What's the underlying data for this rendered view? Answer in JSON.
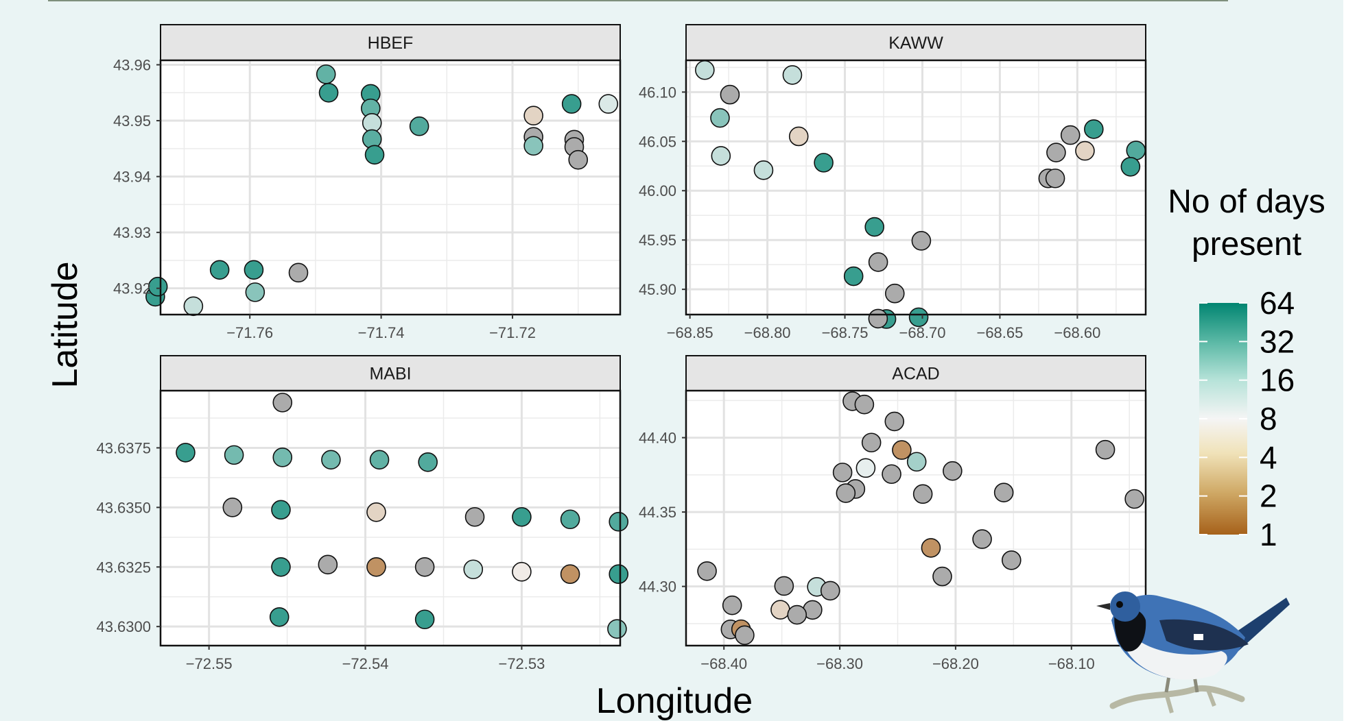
{
  "figure": {
    "xlabel": "Longitude",
    "ylabel": "Latitude",
    "legend_title_line1": "No of days",
    "legend_title_line2": "present",
    "legend_labels": [
      "64",
      "32",
      "16",
      "8",
      "4",
      "2",
      "1"
    ]
  },
  "colors": {
    "grey_na": "#ababab",
    "scale_low": "#a6611a",
    "scale_mid": "#f5f5f5",
    "scale_high": "#018571",
    "strip_bg": "#e5e5e5"
  },
  "icons": [
    "bird-illustration"
  ],
  "chart_data": [
    {
      "type": "scatter",
      "title": "HBEF",
      "xlim": [
        -71.7736,
        -71.7036
      ],
      "ylim": [
        43.9153,
        43.9608
      ],
      "xticks": [
        -71.76,
        -71.74,
        -71.72
      ],
      "xtick_labels": [
        "−71.76",
        "−71.74",
        "−71.72"
      ],
      "yticks": [
        43.92,
        43.93,
        43.94,
        43.95,
        43.96
      ],
      "ytick_labels": [
        "43.92",
        "43.93",
        "43.94",
        "43.95",
        "43.96"
      ],
      "points": [
        {
          "x": -71.7744,
          "y": 43.9185,
          "days": 40
        },
        {
          "x": -71.774,
          "y": 43.9203,
          "days": 40
        },
        {
          "x": -71.7686,
          "y": 43.9168,
          "days": 12
        },
        {
          "x": -71.7646,
          "y": 43.9233,
          "days": 40
        },
        {
          "x": -71.7594,
          "y": 43.9233,
          "days": 40
        },
        {
          "x": -71.7592,
          "y": 43.9193,
          "days": 20
        },
        {
          "x": -71.7526,
          "y": 43.9228,
          "days": null
        },
        {
          "x": -71.7484,
          "y": 43.9583,
          "days": 28
        },
        {
          "x": -71.748,
          "y": 43.955,
          "days": 40
        },
        {
          "x": -71.7416,
          "y": 43.9548,
          "days": 40
        },
        {
          "x": -71.7416,
          "y": 43.9522,
          "days": 28
        },
        {
          "x": -71.7414,
          "y": 43.9496,
          "days": 12
        },
        {
          "x": -71.7414,
          "y": 43.9467,
          "days": 30
        },
        {
          "x": -71.741,
          "y": 43.9439,
          "days": 40
        },
        {
          "x": -71.7342,
          "y": 43.949,
          "days": 32
        },
        {
          "x": -71.7168,
          "y": 43.9509,
          "days": 5
        },
        {
          "x": -71.7168,
          "y": 43.9471,
          "days": null
        },
        {
          "x": -71.7168,
          "y": 43.9455,
          "days": 20
        },
        {
          "x": -71.711,
          "y": 43.953,
          "days": 40
        },
        {
          "x": -71.7106,
          "y": 43.9466,
          "days": null
        },
        {
          "x": -71.7106,
          "y": 43.9453,
          "days": null
        },
        {
          "x": -71.71,
          "y": 43.943,
          "days": null
        },
        {
          "x": -71.7054,
          "y": 43.953,
          "days": 10
        }
      ]
    },
    {
      "type": "scatter",
      "title": "KAWW",
      "xlim": [
        -68.8525,
        -68.5559
      ],
      "ylim": [
        45.8744,
        46.1322
      ],
      "xticks": [
        -68.85,
        -68.8,
        -68.75,
        -68.7,
        -68.65,
        -68.6
      ],
      "xtick_labels": [
        "−68.85",
        "−68.80",
        "−68.75",
        "−68.70",
        "−68.65",
        "−68.60"
      ],
      "yticks": [
        45.9,
        45.95,
        46.0,
        46.05,
        46.1
      ],
      "ytick_labels": [
        "45.90",
        "45.95",
        "46.00",
        "46.05",
        "46.10"
      ],
      "points": [
        {
          "x": -68.8404,
          "y": 46.1223,
          "days": 12
        },
        {
          "x": -68.8242,
          "y": 46.0974,
          "days": null
        },
        {
          "x": -68.8306,
          "y": 46.0738,
          "days": 20
        },
        {
          "x": -68.83,
          "y": 46.0353,
          "days": 12
        },
        {
          "x": -68.8025,
          "y": 46.0208,
          "days": 12
        },
        {
          "x": -68.7839,
          "y": 46.1173,
          "days": 12
        },
        {
          "x": -68.7798,
          "y": 46.0551,
          "days": 5
        },
        {
          "x": -68.7637,
          "y": 46.0284,
          "days": 40
        },
        {
          "x": -68.7309,
          "y": 45.9633,
          "days": 40
        },
        {
          "x": -68.7444,
          "y": 45.9133,
          "days": 40
        },
        {
          "x": -68.7285,
          "y": 45.9276,
          "days": null
        },
        {
          "x": -68.7178,
          "y": 45.8958,
          "days": null
        },
        {
          "x": -68.7007,
          "y": 45.9492,
          "days": null
        },
        {
          "x": -68.7232,
          "y": 45.8699,
          "days": 40
        },
        {
          "x": -68.7286,
          "y": 45.8703,
          "days": null
        },
        {
          "x": -68.7024,
          "y": 45.8717,
          "days": 40
        },
        {
          "x": -68.6045,
          "y": 46.0564,
          "days": null
        },
        {
          "x": -68.6137,
          "y": 46.0387,
          "days": null
        },
        {
          "x": -68.6188,
          "y": 46.0125,
          "days": null
        },
        {
          "x": -68.6143,
          "y": 46.0125,
          "days": null
        },
        {
          "x": -68.5951,
          "y": 46.0404,
          "days": 5
        },
        {
          "x": -68.5894,
          "y": 46.0624,
          "days": 40
        },
        {
          "x": -68.5622,
          "y": 46.0408,
          "days": 32
        },
        {
          "x": -68.5657,
          "y": 46.0243,
          "days": 40
        }
      ]
    },
    {
      "type": "scatter",
      "title": "MABI",
      "xlim": [
        -72.5531,
        -72.5237
      ],
      "ylim": [
        43.6292,
        43.6399
      ],
      "xticks": [
        -72.55,
        -72.54,
        -72.53
      ],
      "xtick_labels": [
        "−72.55",
        "−72.54",
        "−72.53"
      ],
      "yticks": [
        43.63,
        43.6325,
        43.635,
        43.6375
      ],
      "ytick_labels": [
        "43.6300",
        "43.6325",
        "43.6350",
        "43.6375"
      ],
      "points": [
        {
          "x": -72.5453,
          "y": 43.6394,
          "days": null
        },
        {
          "x": -72.5515,
          "y": 43.6373,
          "days": 40
        },
        {
          "x": -72.5484,
          "y": 43.6372,
          "days": 24
        },
        {
          "x": -72.5453,
          "y": 43.6371,
          "days": 24
        },
        {
          "x": -72.5422,
          "y": 43.637,
          "days": 24
        },
        {
          "x": -72.5391,
          "y": 43.637,
          "days": 28
        },
        {
          "x": -72.536,
          "y": 43.6369,
          "days": 32
        },
        {
          "x": -72.5485,
          "y": 43.635,
          "days": null
        },
        {
          "x": -72.5454,
          "y": 43.6349,
          "days": 40
        },
        {
          "x": -72.5393,
          "y": 43.6348,
          "days": 5
        },
        {
          "x": -72.533,
          "y": 43.6346,
          "days": null
        },
        {
          "x": -72.53,
          "y": 43.6346,
          "days": 40
        },
        {
          "x": -72.5269,
          "y": 43.6345,
          "days": 32
        },
        {
          "x": -72.5238,
          "y": 43.6344,
          "days": 32
        },
        {
          "x": -72.5454,
          "y": 43.6325,
          "days": 40
        },
        {
          "x": -72.5424,
          "y": 43.6326,
          "days": null
        },
        {
          "x": -72.5393,
          "y": 43.6325,
          "days": 2
        },
        {
          "x": -72.5362,
          "y": 43.6325,
          "days": null
        },
        {
          "x": -72.5331,
          "y": 43.6324,
          "days": 12
        },
        {
          "x": -72.53,
          "y": 43.6323,
          "days": 7
        },
        {
          "x": -72.5269,
          "y": 43.6322,
          "days": 2
        },
        {
          "x": -72.5238,
          "y": 43.6322,
          "days": 40
        },
        {
          "x": -72.5455,
          "y": 43.6304,
          "days": 40
        },
        {
          "x": -72.5362,
          "y": 43.6303,
          "days": 40
        },
        {
          "x": -72.5239,
          "y": 43.6299,
          "days": 20
        }
      ]
    },
    {
      "type": "scatter",
      "title": "ACAD",
      "xlim": [
        -68.4327,
        -68.0359
      ],
      "ylim": [
        44.2602,
        44.4316
      ],
      "xticks": [
        -68.4,
        -68.3,
        -68.2,
        -68.1
      ],
      "xtick_labels": [
        "−68.40",
        "−68.30",
        "−68.20",
        "−68.10"
      ],
      "yticks": [
        44.3,
        44.35,
        44.4
      ],
      "ytick_labels": [
        "44.30",
        "44.35",
        "44.40"
      ],
      "points": [
        {
          "x": -68.2891,
          "y": 44.4245,
          "days": null
        },
        {
          "x": -68.2788,
          "y": 44.4223,
          "days": null
        },
        {
          "x": -68.2528,
          "y": 44.4109,
          "days": null
        },
        {
          "x": -68.2727,
          "y": 44.3967,
          "days": null
        },
        {
          "x": -68.2465,
          "y": 44.3917,
          "days": 2
        },
        {
          "x": -68.2336,
          "y": 44.3838,
          "days": 16
        },
        {
          "x": -68.2776,
          "y": 44.3796,
          "days": 9
        },
        {
          "x": -68.2976,
          "y": 44.3766,
          "days": null
        },
        {
          "x": -68.2553,
          "y": 44.3755,
          "days": null
        },
        {
          "x": -68.2027,
          "y": 44.3776,
          "days": null
        },
        {
          "x": -68.2865,
          "y": 44.3655,
          "days": null
        },
        {
          "x": -68.2948,
          "y": 44.3627,
          "days": null
        },
        {
          "x": -68.2283,
          "y": 44.3621,
          "days": null
        },
        {
          "x": -68.1584,
          "y": 44.3631,
          "days": null
        },
        {
          "x": -68.0708,
          "y": 44.3919,
          "days": null
        },
        {
          "x": -68.0456,
          "y": 44.3588,
          "days": null
        },
        {
          "x": -68.1771,
          "y": 44.3318,
          "days": null
        },
        {
          "x": -68.2213,
          "y": 44.3259,
          "days": 2
        },
        {
          "x": -68.1518,
          "y": 44.3176,
          "days": null
        },
        {
          "x": -68.2115,
          "y": 44.3067,
          "days": null
        },
        {
          "x": -68.4146,
          "y": 44.3103,
          "days": null
        },
        {
          "x": -68.3481,
          "y": 44.3003,
          "days": null
        },
        {
          "x": -68.3198,
          "y": 44.2997,
          "days": 12
        },
        {
          "x": -68.3082,
          "y": 44.2971,
          "days": null
        },
        {
          "x": -68.3929,
          "y": 44.2873,
          "days": null
        },
        {
          "x": -68.3513,
          "y": 44.2843,
          "days": 5
        },
        {
          "x": -68.3235,
          "y": 44.2842,
          "days": null
        },
        {
          "x": -68.3369,
          "y": 44.2809,
          "days": null
        },
        {
          "x": -68.3943,
          "y": 44.2711,
          "days": null
        },
        {
          "x": -68.3852,
          "y": 44.2712,
          "days": 2
        },
        {
          "x": -68.3821,
          "y": 44.2672,
          "days": null
        }
      ]
    }
  ]
}
